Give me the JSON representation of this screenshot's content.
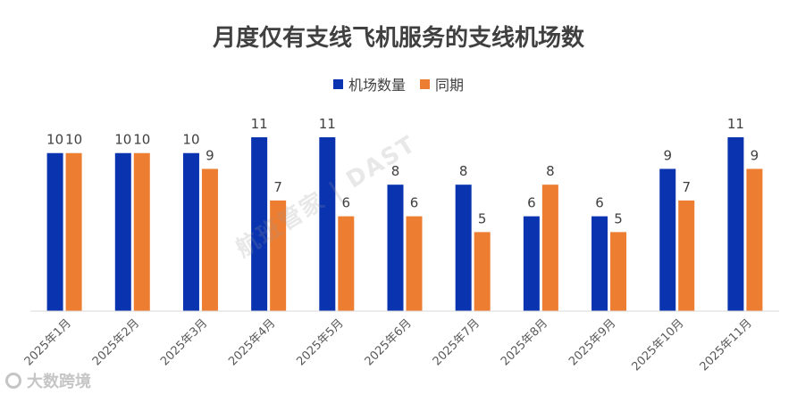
{
  "chart_data": {
    "type": "bar",
    "title": "月度仅有支线飞机服务的支线机场数",
    "categories": [
      "2025年1月",
      "2025年2月",
      "2025年3月",
      "2025年4月",
      "2025年5月",
      "2025年6月",
      "2025年7月",
      "2025年8月",
      "2025年9月",
      "2025年10月",
      "2025年11月"
    ],
    "series": [
      {
        "name": "机场数量",
        "color": "#0a33b0",
        "values": [
          10,
          10,
          10,
          11,
          11,
          8,
          8,
          6,
          6,
          9,
          11
        ]
      },
      {
        "name": "同期",
        "color": "#ed7d31",
        "values": [
          10,
          10,
          9,
          7,
          6,
          6,
          5,
          8,
          5,
          7,
          9
        ]
      }
    ],
    "ylim": [
      0,
      11
    ],
    "grid": false,
    "legend_position": "top-center",
    "data_labels": true
  },
  "watermark": {
    "text": "航班管家 | DAST"
  },
  "corner_mark": {
    "text": "大数跨境"
  }
}
